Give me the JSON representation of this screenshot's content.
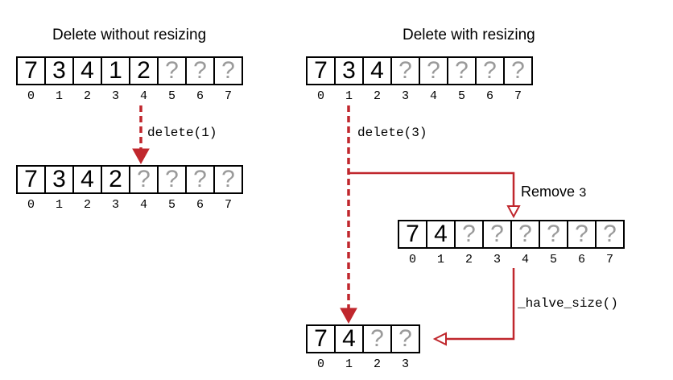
{
  "titles": {
    "left": "Delete without resizing",
    "right": "Delete with resizing"
  },
  "arrays": {
    "left_before": [
      "7",
      "3",
      "4",
      "1",
      "2",
      "?",
      "?",
      "?"
    ],
    "left_after": [
      "7",
      "3",
      "4",
      "2",
      "?",
      "?",
      "?",
      "?"
    ],
    "right_before": [
      "7",
      "3",
      "4",
      "?",
      "?",
      "?",
      "?",
      "?"
    ],
    "right_middle": [
      "7",
      "4",
      "?",
      "?",
      "?",
      "?",
      "?",
      "?"
    ],
    "right_final": [
      "7",
      "4",
      "?",
      "?"
    ]
  },
  "indices": {
    "eight": [
      "0",
      "1",
      "2",
      "3",
      "4",
      "5",
      "6",
      "7"
    ],
    "four": [
      "0",
      "1",
      "2",
      "3"
    ]
  },
  "labels": {
    "left_delete": "delete(1)",
    "right_delete": "delete(3)",
    "remove_word": "Remove ",
    "remove_value": "3",
    "halve": "_halve_size()"
  },
  "colors": {
    "arrow": "#c0272d",
    "placeholder": "#9a9a9a"
  }
}
